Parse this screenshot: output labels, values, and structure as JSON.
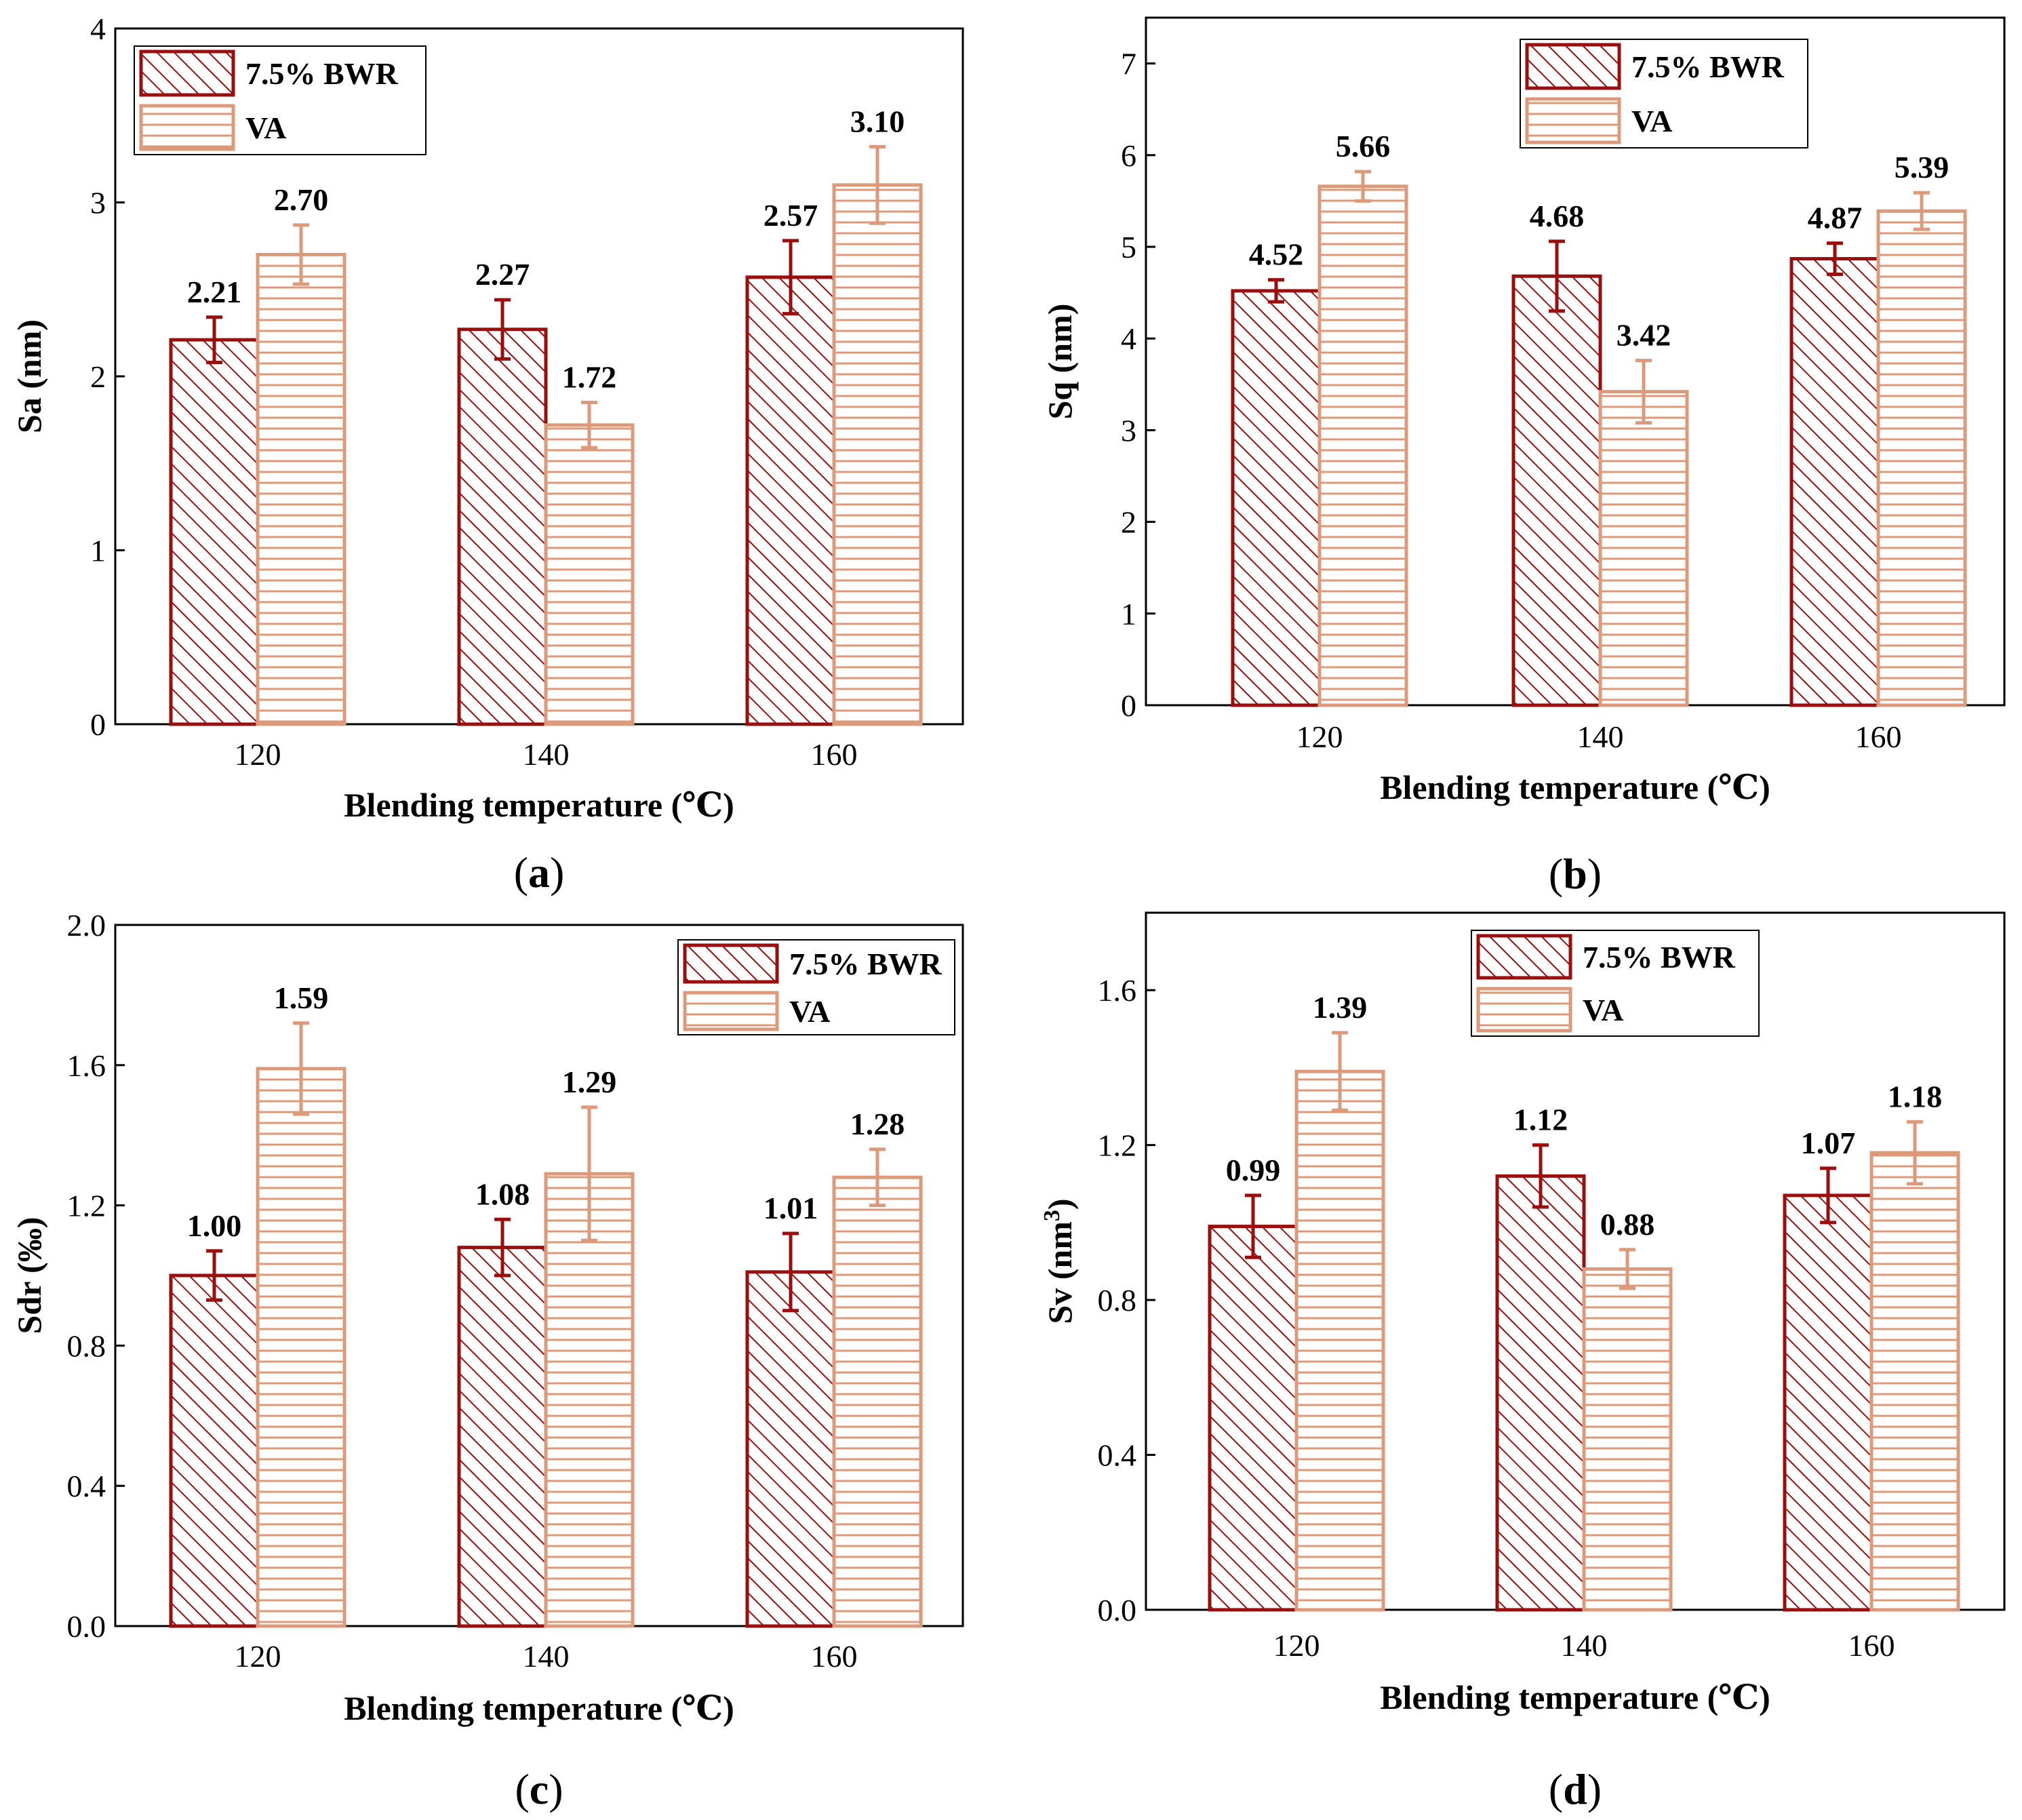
{
  "colors": {
    "series_a": "#9b0e0e",
    "series_b": "#dc9a7a"
  },
  "chart_data": [
    {
      "id": "a",
      "type": "bar",
      "caption": "a",
      "xlabel": "Blending temperature (℃)",
      "ylabel": "Sa (nm)",
      "ylim": [
        0,
        4
      ],
      "yticks": [
        "0",
        "1",
        "2",
        "3",
        "4"
      ],
      "legend_position": "top-left",
      "categories": [
        "120",
        "140",
        "160"
      ],
      "series": [
        {
          "name": "7.5% BWR",
          "pattern": "diagonal",
          "values": [
            2.21,
            2.27,
            2.57
          ],
          "errors": [
            0.13,
            0.17,
            0.21
          ],
          "labels": [
            "2.21",
            "2.27",
            "2.57"
          ]
        },
        {
          "name": "VA",
          "pattern": "horizontal",
          "values": [
            2.7,
            1.72,
            3.1
          ],
          "errors": [
            0.17,
            0.13,
            0.22
          ],
          "labels": [
            "2.70",
            "1.72",
            "3.10"
          ]
        }
      ]
    },
    {
      "id": "b",
      "type": "bar",
      "caption": "b",
      "xlabel": "Blending temperature (℃)",
      "ylabel": "Sq (nm)",
      "ylim": [
        0,
        7.5
      ],
      "yticks": [
        "0",
        "1",
        "2",
        "3",
        "4",
        "5",
        "6",
        "7"
      ],
      "legend_position": "top-right",
      "categories": [
        "120",
        "140",
        "160"
      ],
      "series": [
        {
          "name": "7.5% BWR",
          "pattern": "diagonal",
          "values": [
            4.52,
            4.68,
            4.87
          ],
          "errors": [
            0.12,
            0.38,
            0.17
          ],
          "labels": [
            "4.52",
            "4.68",
            "4.87"
          ]
        },
        {
          "name": "VA",
          "pattern": "horizontal",
          "values": [
            5.66,
            3.42,
            5.39
          ],
          "errors": [
            0.16,
            0.34,
            0.2
          ],
          "labels": [
            "5.66",
            "3.42",
            "5.39"
          ]
        }
      ]
    },
    {
      "id": "c",
      "type": "bar",
      "caption": "c",
      "xlabel": "Blending temperature (℃)",
      "ylabel": "Sdr (‰)",
      "ylim": [
        0,
        2.0
      ],
      "yticks": [
        "0.0",
        "0.4",
        "0.8",
        "1.2",
        "1.6",
        "2.0"
      ],
      "legend_position": "top-right",
      "categories": [
        "120",
        "140",
        "160"
      ],
      "series": [
        {
          "name": "7.5% BWR",
          "pattern": "diagonal",
          "values": [
            1.0,
            1.08,
            1.01
          ],
          "errors": [
            0.07,
            0.08,
            0.11
          ],
          "labels": [
            "1.00",
            "1.08",
            "1.01"
          ]
        },
        {
          "name": "VA",
          "pattern": "horizontal",
          "values": [
            1.59,
            1.29,
            1.28
          ],
          "errors": [
            0.13,
            0.19,
            0.08
          ],
          "labels": [
            "1.59",
            "1.29",
            "1.28"
          ]
        }
      ]
    },
    {
      "id": "d",
      "type": "bar",
      "caption": "d",
      "xlabel": "Blending temperature (℃)",
      "ylabel": "Sv (nm",
      "ylabel_sup": "3",
      "ylabel_close": ")",
      "ylim": [
        0,
        1.8
      ],
      "yticks": [
        "0.0",
        "0.4",
        "0.8",
        "1.2",
        "1.6"
      ],
      "legend_position": "top-right",
      "categories": [
        "120",
        "140",
        "160"
      ],
      "series": [
        {
          "name": "7.5% BWR",
          "pattern": "diagonal",
          "values": [
            0.99,
            1.12,
            1.07
          ],
          "errors": [
            0.08,
            0.08,
            0.07
          ],
          "labels": [
            "0.99",
            "1.12",
            "1.07"
          ]
        },
        {
          "name": "VA",
          "pattern": "horizontal",
          "values": [
            1.39,
            0.88,
            1.18
          ],
          "errors": [
            0.1,
            0.05,
            0.08
          ],
          "labels": [
            "1.39",
            "0.88",
            "1.18"
          ]
        }
      ]
    }
  ]
}
